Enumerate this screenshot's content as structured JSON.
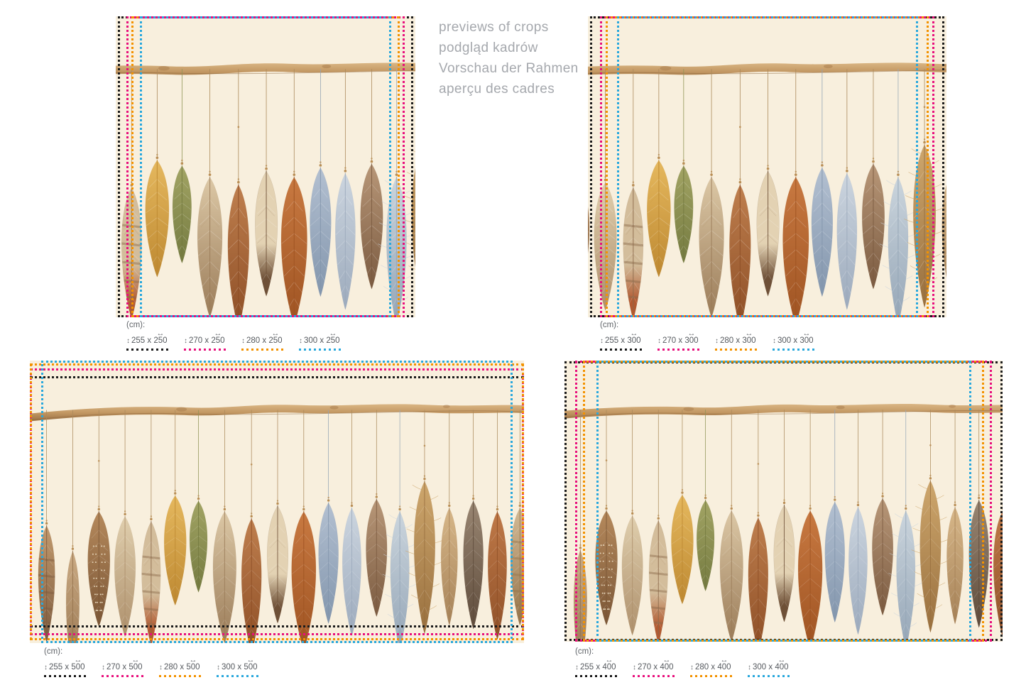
{
  "header": {
    "lines": [
      "previews of crops",
      "podgląd kadrów",
      "Vorschau der Rahmen",
      "aperçu des cadres"
    ]
  },
  "legend_unit": "(cm):",
  "crop_colors": {
    "black": "#1b1b1b",
    "pink": "#e80f7c",
    "orange": "#f39200",
    "blue": "#29a8dd"
  },
  "artwork": {
    "description": "watercolor boho feathers hanging on strings from a wooden branch",
    "background": "#f8efdd",
    "branch_color": "#c29762",
    "string_color": "#ab8a5c"
  },
  "panels": [
    {
      "name": "crop-preview-250",
      "crops": [
        {
          "height_cm": "255",
          "width_cm": "250",
          "sep": " x ",
          "color": "black"
        },
        {
          "height_cm": "270",
          "width_cm": "250",
          "sep": " x ",
          "color": "pink"
        },
        {
          "height_cm": "280",
          "width_cm": "250",
          "sep": " x ",
          "color": "orange"
        },
        {
          "height_cm": "300",
          "width_cm": "250",
          "sep": " x ",
          "color": "blue"
        }
      ]
    },
    {
      "name": "crop-preview-300",
      "crops": [
        {
          "height_cm": "255",
          "width_cm": "300",
          "sep": " x ",
          "color": "black"
        },
        {
          "height_cm": "270",
          "width_cm": "300",
          "sep": " x ",
          "color": "pink"
        },
        {
          "height_cm": "280",
          "width_cm": "300",
          "sep": " x ",
          "color": "orange"
        },
        {
          "height_cm": "300",
          "width_cm": "300",
          "sep": " x ",
          "color": "blue"
        }
      ]
    },
    {
      "name": "crop-preview-500",
      "crops": [
        {
          "height_cm": "255",
          "width_cm": "500",
          "sep": " x ",
          "color": "black"
        },
        {
          "height_cm": "270",
          "width_cm": "500",
          "sep": " x ",
          "color": "pink"
        },
        {
          "height_cm": "280",
          "width_cm": "500",
          "sep": " x ",
          "color": "orange"
        },
        {
          "height_cm": "300",
          "width_cm": "500",
          "sep": " x ",
          "color": "blue"
        }
      ]
    },
    {
      "name": "crop-preview-400",
      "crops": [
        {
          "height_cm": "255",
          "width_cm": "400",
          "sep": " x ",
          "color": "black"
        },
        {
          "height_cm": "270",
          "width_cm": "400",
          "sep": " x ",
          "color": "pink"
        },
        {
          "height_cm": "280",
          "width_cm": "400",
          "sep": " x ",
          "color": "orange"
        },
        {
          "height_cm": "300",
          "width_cm": "400",
          "sep": " x ",
          "color": "blue"
        }
      ]
    }
  ]
}
